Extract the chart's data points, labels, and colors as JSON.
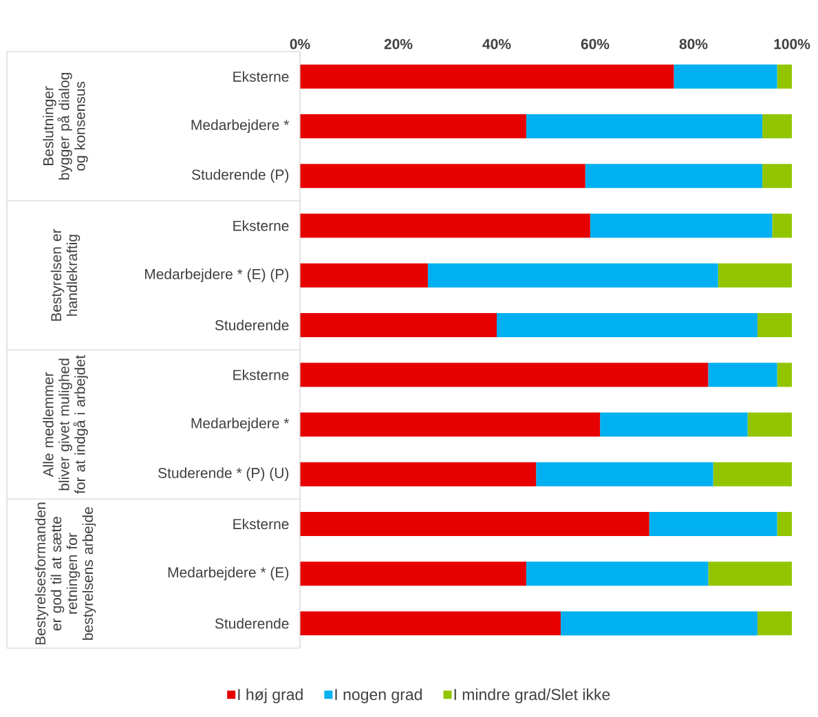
{
  "chart_data": {
    "type": "bar",
    "orientation": "horizontal",
    "stacked": true,
    "categories": [
      "Eksterne",
      "Medarbejdere *",
      "Studerende (P)",
      "Eksterne",
      "Medarbejdere * (E) (P)",
      "Studerende",
      "Eksterne",
      "Medarbejdere *",
      "Studerende * (P) (U)",
      "Eksterne",
      "Medarbejdere * (E)",
      "Studerende"
    ],
    "series": [
      {
        "name": "I høj grad",
        "color": "#e60000",
        "values": [
          76,
          46,
          58,
          59,
          26,
          40,
          83,
          61,
          48,
          71,
          46,
          53
        ]
      },
      {
        "name": "I nogen grad",
        "color": "#00b0f0",
        "values": [
          21,
          48,
          36,
          37,
          59,
          53,
          14,
          30,
          36,
          26,
          37,
          40
        ]
      },
      {
        "name": "I mindre grad/Slet ikke",
        "color": "#92c500",
        "values": [
          3,
          6,
          6,
          4,
          15,
          7,
          3,
          9,
          16,
          3,
          17,
          7
        ]
      }
    ],
    "xlim": [
      0,
      100
    ],
    "xticks": [
      {
        "value": 0,
        "label": "0%"
      },
      {
        "value": 20,
        "label": "20%"
      },
      {
        "value": 40,
        "label": "40%"
      },
      {
        "value": 60,
        "label": "60%"
      },
      {
        "value": 80,
        "label": "80%"
      },
      {
        "value": 100,
        "label": "100%"
      }
    ],
    "annotations": [
      "Beslutninger bygger på dialog og konsensus",
      "Bestyrelsen er handlekraftig",
      "Alle medlemmer bliver givet mulighed for at indgå i arbejdet",
      "Bestyrelsesformanden er god til at sætte retningen for bestyrelsens arbejde"
    ],
    "legend": "bottom",
    "grid": false,
    "marker": "square"
  }
}
